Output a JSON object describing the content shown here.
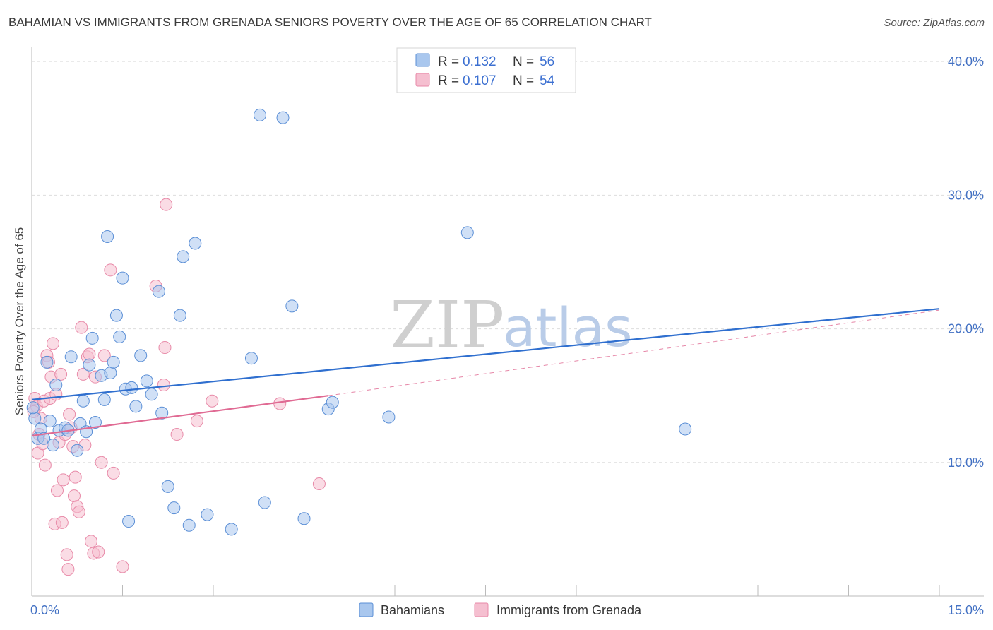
{
  "header": {
    "title": "BAHAMIAN VS IMMIGRANTS FROM GRENADA SENIORS POVERTY OVER THE AGE OF 65 CORRELATION CHART",
    "source": "Source: ZipAtlas.com"
  },
  "watermark": {
    "zip": "ZIP",
    "atlas": "atlas"
  },
  "colors": {
    "blue_fill": "#a9c7ee",
    "blue_stroke": "#5b8fd6",
    "blue_line": "#2f6fcf",
    "pink_fill": "#f5bfd0",
    "pink_stroke": "#e88aa8",
    "pink_line": "#e06a93",
    "grid": "#dddddd",
    "tick_label": "#4472c4"
  },
  "legend": {
    "rows": [
      {
        "r_label": "R =",
        "r_value": "0.132",
        "n_label": "N =",
        "n_value": "56"
      },
      {
        "r_label": "R =",
        "r_value": "0.107",
        "n_label": "N =",
        "n_value": "54"
      }
    ]
  },
  "chart_data": {
    "type": "scatter",
    "title": "BAHAMIAN VS IMMIGRANTS FROM GRENADA SENIORS POVERTY OVER THE AGE OF 65 CORRELATION CHART",
    "xlabel": "",
    "ylabel": "Seniors Poverty Over the Age of 65",
    "xlim": [
      0,
      15
    ],
    "ylim": [
      0,
      40.8
    ],
    "x_tick_labels": [
      "0.0%",
      "15.0%"
    ],
    "y_ticks": [
      10,
      20,
      30,
      40
    ],
    "y_tick_labels": [
      "10.0%",
      "20.0%",
      "30.0%",
      "40.0%"
    ],
    "grid": true,
    "series": [
      {
        "name": "Bahamians",
        "r": 0.132,
        "n": 56,
        "trend": {
          "x": [
            0.0,
            15.0
          ],
          "y": [
            14.7,
            21.5
          ]
        },
        "points": [
          [
            0.05,
            13.3
          ],
          [
            0.1,
            11.8
          ],
          [
            0.15,
            12.5
          ],
          [
            0.2,
            11.8
          ],
          [
            0.25,
            17.5
          ],
          [
            0.3,
            13.1
          ],
          [
            0.35,
            11.3
          ],
          [
            0.4,
            15.8
          ],
          [
            0.45,
            12.4
          ],
          [
            0.55,
            12.6
          ],
          [
            0.6,
            12.4
          ],
          [
            0.65,
            17.9
          ],
          [
            0.75,
            10.9
          ],
          [
            0.8,
            12.9
          ],
          [
            0.85,
            14.6
          ],
          [
            0.9,
            12.3
          ],
          [
            0.95,
            17.3
          ],
          [
            1.0,
            19.3
          ],
          [
            1.05,
            13.0
          ],
          [
            1.15,
            16.5
          ],
          [
            1.2,
            14.7
          ],
          [
            1.25,
            26.9
          ],
          [
            1.3,
            16.7
          ],
          [
            1.35,
            17.5
          ],
          [
            1.4,
            21.0
          ],
          [
            1.45,
            19.4
          ],
          [
            1.5,
            23.8
          ],
          [
            1.55,
            15.5
          ],
          [
            1.6,
            5.6
          ],
          [
            1.65,
            15.6
          ],
          [
            1.72,
            14.2
          ],
          [
            1.8,
            18.0
          ],
          [
            1.9,
            16.1
          ],
          [
            1.98,
            15.1
          ],
          [
            2.1,
            22.8
          ],
          [
            2.15,
            13.7
          ],
          [
            2.25,
            8.2
          ],
          [
            2.35,
            6.6
          ],
          [
            2.45,
            21.0
          ],
          [
            2.5,
            25.4
          ],
          [
            2.6,
            5.3
          ],
          [
            2.7,
            26.4
          ],
          [
            2.9,
            6.1
          ],
          [
            3.3,
            5.0
          ],
          [
            3.63,
            17.8
          ],
          [
            3.77,
            36.0
          ],
          [
            3.85,
            7.0
          ],
          [
            4.15,
            35.8
          ],
          [
            4.3,
            21.7
          ],
          [
            4.5,
            5.8
          ],
          [
            4.9,
            14.0
          ],
          [
            4.97,
            14.5
          ],
          [
            5.9,
            13.4
          ],
          [
            7.2,
            27.2
          ],
          [
            10.8,
            12.5
          ],
          [
            0.02,
            14.1
          ]
        ]
      },
      {
        "name": "Immigrants from Grenada",
        "r": 0.107,
        "n": 54,
        "trend": {
          "x": [
            0.0,
            4.9
          ],
          "y": [
            12.0,
            15.0
          ]
        },
        "trend_extension": {
          "x": [
            4.9,
            15.0
          ],
          "y": [
            15.0,
            21.4
          ]
        },
        "points": [
          [
            0.05,
            14.8
          ],
          [
            0.08,
            14.2
          ],
          [
            0.1,
            10.7
          ],
          [
            0.12,
            12.1
          ],
          [
            0.15,
            13.3
          ],
          [
            0.18,
            11.4
          ],
          [
            0.2,
            14.6
          ],
          [
            0.22,
            9.8
          ],
          [
            0.25,
            18.0
          ],
          [
            0.28,
            17.5
          ],
          [
            0.3,
            14.8
          ],
          [
            0.32,
            16.4
          ],
          [
            0.35,
            18.9
          ],
          [
            0.38,
            5.4
          ],
          [
            0.4,
            15.1
          ],
          [
            0.42,
            7.9
          ],
          [
            0.45,
            11.5
          ],
          [
            0.48,
            16.6
          ],
          [
            0.5,
            5.5
          ],
          [
            0.52,
            8.7
          ],
          [
            0.55,
            12.1
          ],
          [
            0.58,
            3.1
          ],
          [
            0.6,
            2.0
          ],
          [
            0.62,
            13.6
          ],
          [
            0.65,
            12.6
          ],
          [
            0.68,
            11.2
          ],
          [
            0.7,
            7.5
          ],
          [
            0.72,
            8.9
          ],
          [
            0.75,
            6.7
          ],
          [
            0.78,
            6.3
          ],
          [
            0.82,
            20.1
          ],
          [
            0.85,
            16.6
          ],
          [
            0.88,
            11.3
          ],
          [
            0.92,
            17.9
          ],
          [
            0.95,
            18.1
          ],
          [
            0.98,
            4.1
          ],
          [
            1.02,
            3.2
          ],
          [
            1.05,
            16.4
          ],
          [
            1.1,
            3.3
          ],
          [
            1.15,
            10.0
          ],
          [
            1.2,
            18.0
          ],
          [
            1.3,
            24.4
          ],
          [
            1.35,
            9.2
          ],
          [
            1.5,
            2.2
          ],
          [
            2.05,
            23.2
          ],
          [
            2.18,
            15.8
          ],
          [
            2.2,
            18.6
          ],
          [
            2.22,
            29.3
          ],
          [
            2.4,
            12.1
          ],
          [
            2.73,
            13.1
          ],
          [
            2.98,
            14.6
          ],
          [
            4.1,
            14.4
          ],
          [
            4.75,
            8.4
          ],
          [
            0.03,
            13.8
          ]
        ]
      }
    ]
  },
  "bottom_legend": {
    "items": [
      {
        "label": "Bahamians"
      },
      {
        "label": "Immigrants from Grenada"
      }
    ]
  }
}
